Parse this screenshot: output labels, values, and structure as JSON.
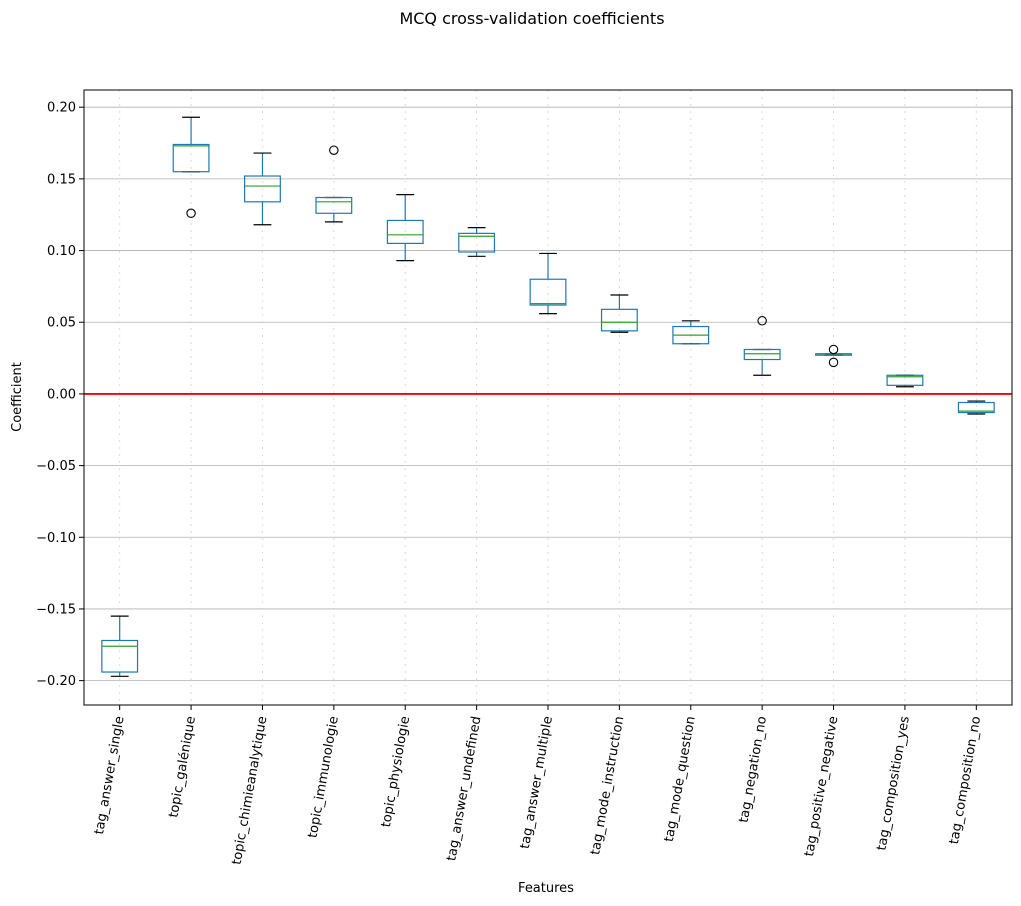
{
  "chart_data": {
    "type": "box",
    "title": "MCQ cross-validation coefficients",
    "xlabel": "Features",
    "ylabel": "Coefficient",
    "ylim": [
      -0.217,
      0.212
    ],
    "yticks": [
      -0.2,
      -0.15,
      -0.1,
      -0.05,
      0.0,
      0.05,
      0.1,
      0.15,
      0.2
    ],
    "ytick_labels": [
      "−0.20",
      "−0.15",
      "−0.10",
      "−0.05",
      "0.00",
      "0.05",
      "0.10",
      "0.15",
      "0.20"
    ],
    "grid": {
      "y": "solid",
      "x": "dotted"
    },
    "reference_line": {
      "y": 0.0,
      "color": "#ff0000"
    },
    "colors": {
      "box": "#1f77b4",
      "median": "#2ca02c",
      "whisker_cap": "#000000",
      "grid": "#b0b0b0"
    },
    "categories": [
      "tag_answer_single",
      "topic_galénique",
      "topic_chimieanalytique",
      "topic_immunologie",
      "topic_physiologie",
      "tag_answer_undefined",
      "tag_answer_multiple",
      "tag_mode_instruction",
      "tag_mode_question",
      "tag_negation_no",
      "tag_positive_negative",
      "tag_composition_yes",
      "tag_composition_no"
    ],
    "boxes": [
      {
        "whislo": -0.197,
        "q1": -0.194,
        "med": -0.176,
        "q3": -0.172,
        "whishi": -0.155,
        "fliers": []
      },
      {
        "whislo": 0.155,
        "q1": 0.155,
        "med": 0.173,
        "q3": 0.174,
        "whishi": 0.193,
        "fliers": [
          0.126
        ]
      },
      {
        "whislo": 0.118,
        "q1": 0.134,
        "med": 0.145,
        "q3": 0.152,
        "whishi": 0.168,
        "fliers": []
      },
      {
        "whislo": 0.12,
        "q1": 0.126,
        "med": 0.134,
        "q3": 0.137,
        "whishi": 0.137,
        "fliers": [
          0.17
        ]
      },
      {
        "whislo": 0.093,
        "q1": 0.105,
        "med": 0.111,
        "q3": 0.121,
        "whishi": 0.139,
        "fliers": []
      },
      {
        "whislo": 0.096,
        "q1": 0.099,
        "med": 0.11,
        "q3": 0.112,
        "whishi": 0.116,
        "fliers": []
      },
      {
        "whislo": 0.056,
        "q1": 0.062,
        "med": 0.063,
        "q3": 0.08,
        "whishi": 0.098,
        "fliers": []
      },
      {
        "whislo": 0.043,
        "q1": 0.044,
        "med": 0.05,
        "q3": 0.059,
        "whishi": 0.069,
        "fliers": []
      },
      {
        "whislo": 0.035,
        "q1": 0.035,
        "med": 0.041,
        "q3": 0.047,
        "whishi": 0.051,
        "fliers": []
      },
      {
        "whislo": 0.013,
        "q1": 0.024,
        "med": 0.028,
        "q3": 0.031,
        "whishi": 0.031,
        "fliers": [
          0.051
        ]
      },
      {
        "whislo": 0.027,
        "q1": 0.027,
        "med": 0.028,
        "q3": 0.028,
        "whishi": 0.028,
        "fliers": [
          0.031,
          0.022
        ]
      },
      {
        "whislo": 0.005,
        "q1": 0.006,
        "med": 0.012,
        "q3": 0.013,
        "whishi": 0.013,
        "fliers": []
      },
      {
        "whislo": -0.014,
        "q1": -0.013,
        "med": -0.012,
        "q3": -0.006,
        "whishi": -0.005,
        "fliers": []
      }
    ]
  }
}
